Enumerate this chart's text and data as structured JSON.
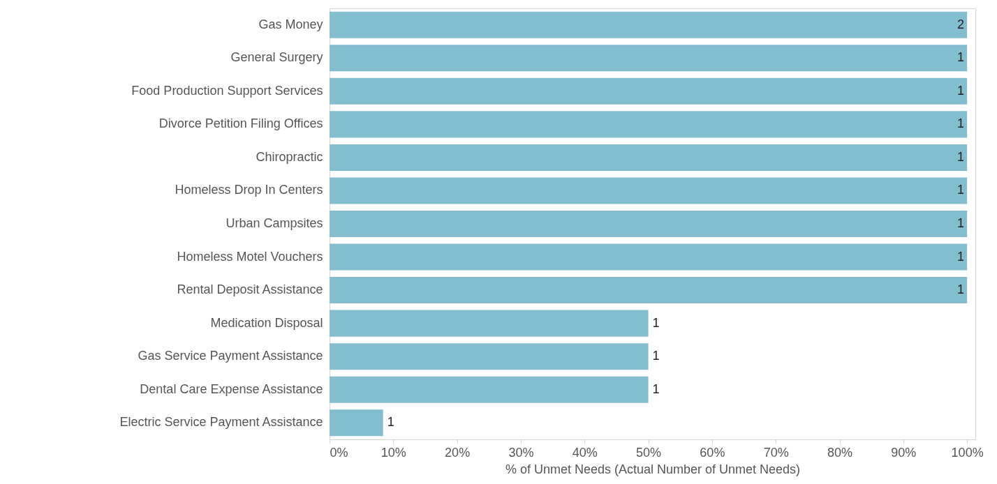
{
  "chart_data": {
    "type": "bar",
    "orientation": "horizontal",
    "xlabel": "% of Unmet Needs (Actual Number of Unmet Needs)",
    "categories": [
      "Gas Money",
      "General Surgery",
      "Food Production Support Services",
      "Divorce Petition Filing Offices",
      "Chiropractic",
      "Homeless Drop In Centers",
      "Urban Campsites",
      "Homeless Motel Vouchers",
      "Rental Deposit Assistance",
      "Medication Disposal",
      "Gas Service Payment Assistance",
      "Dental Care Expense Assistance",
      "Electric Service Payment Assistance"
    ],
    "values": [
      100,
      100,
      100,
      100,
      100,
      100,
      100,
      100,
      100,
      50,
      50,
      50,
      8.4
    ],
    "color": "#83bdd0",
    "xlim": [
      0,
      101.3
    ],
    "xticks": [
      {
        "value": 0,
        "label": "0%"
      },
      {
        "value": 10,
        "label": "10%"
      },
      {
        "value": 20,
        "label": "20%"
      },
      {
        "value": 30,
        "label": "30%"
      },
      {
        "value": 40,
        "label": "40%"
      },
      {
        "value": 50,
        "label": "50%"
      },
      {
        "value": 60,
        "label": "60%"
      },
      {
        "value": 70,
        "label": "70%"
      },
      {
        "value": 80,
        "label": "80%"
      },
      {
        "value": 90,
        "label": "90%"
      },
      {
        "value": 100,
        "label": "100%"
      }
    ],
    "annotations": [
      {
        "text": "2",
        "x": 100,
        "y": "Gas Money"
      },
      {
        "text": "1",
        "x": 100,
        "y": "General Surgery"
      },
      {
        "text": "1",
        "x": 100,
        "y": "Food Production Support Services"
      },
      {
        "text": "1",
        "x": 100,
        "y": "Divorce Petition Filing Offices"
      },
      {
        "text": "1",
        "x": 100,
        "y": "Chiropractic"
      },
      {
        "text": "1",
        "x": 100,
        "y": "Homeless Drop In Centers"
      },
      {
        "text": "1",
        "x": 100,
        "y": "Urban Campsites"
      },
      {
        "text": "1",
        "x": 100,
        "y": "Homeless Motel Vouchers"
      },
      {
        "text": "1",
        "x": 100,
        "y": "Rental Deposit Assistance"
      },
      {
        "text": "1",
        "x": 50,
        "y": "Medication Disposal"
      },
      {
        "text": "1",
        "x": 50,
        "y": "Gas Service Payment Assistance"
      },
      {
        "text": "1",
        "x": 50,
        "y": "Dental Care Expense Assistance"
      },
      {
        "text": "1",
        "x": 8.4,
        "y": "Electric Service Payment Assistance"
      }
    ],
    "grid": false
  }
}
